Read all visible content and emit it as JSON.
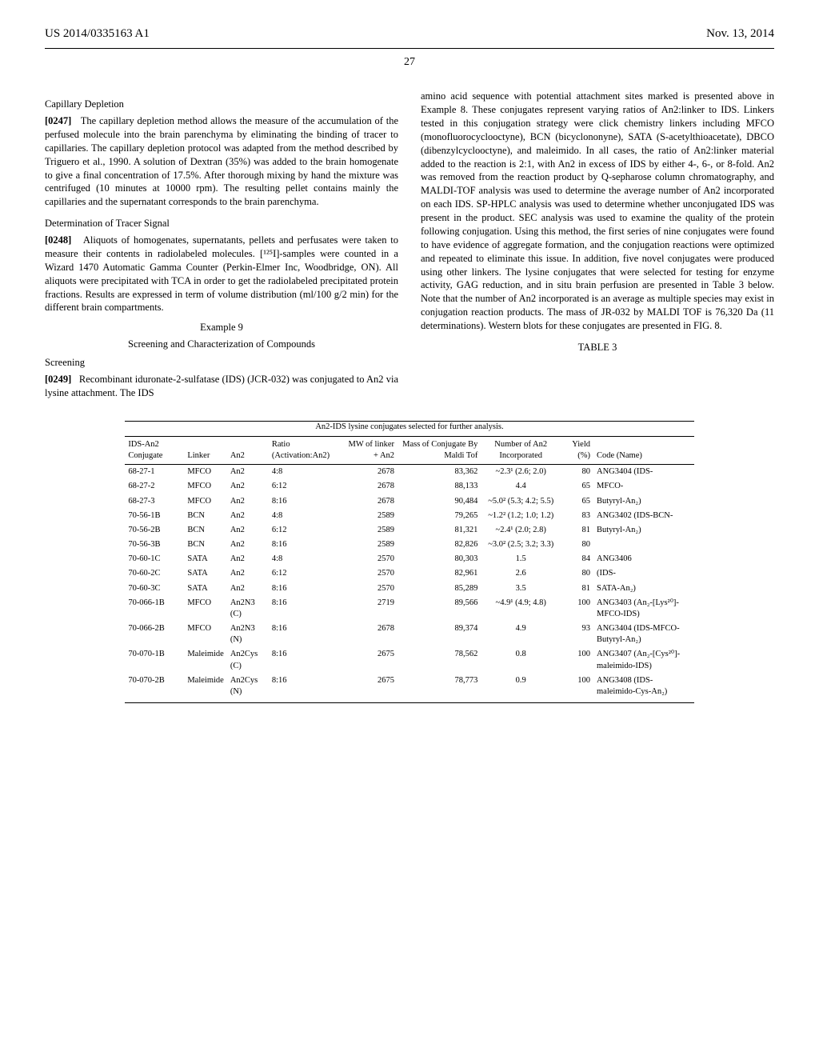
{
  "header": {
    "left": "US 2014/0335163 A1",
    "right": "Nov. 13, 2014",
    "page": "27"
  },
  "left_col": {
    "cap_title": "Capillary Depletion",
    "p0247_num": "[0247]",
    "p0247": "The capillary depletion method allows the measure of the accumulation of the perfused molecule into the brain parenchyma by eliminating the binding of tracer to capillaries. The capillary depletion protocol was adapted from the method described by Triguero et al., 1990. A solution of Dextran (35%) was added to the brain homogenate to give a final concentration of 17.5%. After thorough mixing by hand the mixture was centrifuged (10 minutes at 10000 rpm). The resulting pellet contains mainly the capillaries and the supernatant corresponds to the brain parenchyma.",
    "tracer_title": "Determination of Tracer Signal",
    "p0248_num": "[0248]",
    "p0248": "Aliquots of homogenates, supernatants, pellets and perfusates were taken to measure their contents in radiolabeled molecules. [¹²⁵I]-samples were counted in a Wizard 1470 Automatic Gamma Counter (Perkin-Elmer Inc, Woodbridge, ON). All aliquots were precipitated with TCA in order to get the radiolabeled precipitated protein fractions. Results are expressed in term of volume distribution (ml/100 g/2 min) for the different brain compartments.",
    "ex9": "Example 9",
    "ex9_sub": "Screening and Characterization of Compounds",
    "screening_label": "Screening",
    "p0249_num": "[0249]",
    "p0249": "Recombinant iduronate-2-sulfatase (IDS) (JCR-032) was conjugated to An2 via lysine attachment. The IDS"
  },
  "right_col": {
    "p_right": "amino acid sequence with potential attachment sites marked is presented above in Example 8. These conjugates represent varying ratios of An2:linker to IDS. Linkers tested in this conjugation strategy were click chemistry linkers including MFCO (monofluorocyclooctyne), BCN (bicyclononyne), SATA (S-acetylthioacetate), DBCO (dibenzylcyclooctyne), and maleimido. In all cases, the ratio of An2:linker material added to the reaction is 2:1, with An2 in excess of IDS by either 4-, 6-, or 8-fold. An2 was removed from the reaction product by Q-sepharose column chromatography, and MALDI-TOF analysis was used to determine the average number of An2 incorporated on each IDS. SP-HPLC analysis was used to determine whether unconjugated IDS was present in the product. SEC analysis was used to examine the quality of the protein following conjugation. Using this method, the first series of nine conjugates were found to have evidence of aggregate formation, and the conjugation reactions were optimized and repeated to eliminate this issue. In addition, five novel conjugates were produced using other linkers. The lysine conjugates that were selected for testing for enzyme activity, GAG reduction, and in situ brain perfusion are presented in Table 3 below. Note that the number of An2 incorporated is an average as multiple species may exist in conjugation reaction products. The mass of JR-032 by MALDI TOF is 76,320 Da (11 determinations). Western blots for these conjugates are presented in FIG. 8."
  },
  "table": {
    "label": "TABLE 3",
    "caption": "An2-IDS lysine conjugates selected for further analysis.",
    "columns": {
      "c1": "IDS-An2 Conjugate",
      "c2": "Linker",
      "c3": "An2",
      "c4": "Ratio (Activation:An2)",
      "c5": "MW of linker + An2",
      "c6": "Mass of Conjugate By Maldi Tof",
      "c7": "Number of An2 Incorporated",
      "c8": "Yield (%)",
      "c9": "Code (Name)"
    },
    "rows": [
      {
        "c1": "68-27-1",
        "c2": "MFCO",
        "c3": "An2",
        "c4": "4:8",
        "c5": "2678",
        "c6": "83,362",
        "c7": "~2.3¹ (2.6; 2.0)",
        "c8": "80",
        "c9": "ANG3404 (IDS-"
      },
      {
        "c1": "68-27-2",
        "c2": "MFCO",
        "c3": "An2",
        "c4": "6:12",
        "c5": "2678",
        "c6": "88,133",
        "c7": "4.4",
        "c8": "65",
        "c9": "MFCO-"
      },
      {
        "c1": "68-27-3",
        "c2": "MFCO",
        "c3": "An2",
        "c4": "8:16",
        "c5": "2678",
        "c6": "90,484",
        "c7": "~5.0² (5.3; 4.2; 5.5)",
        "c8": "65",
        "c9": "Butyryl-An₂)"
      },
      {
        "c1": "70-56-1B",
        "c2": "BCN",
        "c3": "An2",
        "c4": "4:8",
        "c5": "2589",
        "c6": "79,265",
        "c7": "~1.2² (1.2; 1.0; 1.2)",
        "c8": "83",
        "c9": "ANG3402 (IDS-BCN-"
      },
      {
        "c1": "70-56-2B",
        "c2": "BCN",
        "c3": "An2",
        "c4": "6:12",
        "c5": "2589",
        "c6": "81,321",
        "c7": "~2.4¹ (2.0; 2.8)",
        "c8": "81",
        "c9": "Butyryl-An₂)"
      },
      {
        "c1": "70-56-3B",
        "c2": "BCN",
        "c3": "An2",
        "c4": "8:16",
        "c5": "2589",
        "c6": "82,826",
        "c7": "~3.0² (2.5; 3.2; 3.3)",
        "c8": "80",
        "c9": ""
      },
      {
        "c1": "70-60-1C",
        "c2": "SATA",
        "c3": "An2",
        "c4": "4:8",
        "c5": "2570",
        "c6": "80,303",
        "c7": "1.5",
        "c8": "84",
        "c9": "ANG3406"
      },
      {
        "c1": "70-60-2C",
        "c2": "SATA",
        "c3": "An2",
        "c4": "6:12",
        "c5": "2570",
        "c6": "82,961",
        "c7": "2.6",
        "c8": "80",
        "c9": "(IDS-"
      },
      {
        "c1": "70-60-3C",
        "c2": "SATA",
        "c3": "An2",
        "c4": "8:16",
        "c5": "2570",
        "c6": "85,289",
        "c7": "3.5",
        "c8": "81",
        "c9": "SATA-An₂)"
      },
      {
        "c1": "70-066-1B",
        "c2": "MFCO",
        "c3": "An2N3 (C)",
        "c4": "8:16",
        "c5": "2719",
        "c6": "89,566",
        "c7": "~4.9¹ (4.9; 4.8)",
        "c8": "100",
        "c9": "ANG3403 (An₂-[Lys²⁰]-MFCO-IDS)"
      },
      {
        "c1": "70-066-2B",
        "c2": "MFCO",
        "c3": "An2N3 (N)",
        "c4": "8:16",
        "c5": "2678",
        "c6": "89,374",
        "c7": "4.9",
        "c8": "93",
        "c9": "ANG3404 (IDS-MFCO-Butyryl-An₂)"
      },
      {
        "c1": "70-070-1B",
        "c2": "Maleimide",
        "c3": "An2Cys (C)",
        "c4": "8:16",
        "c5": "2675",
        "c6": "78,562",
        "c7": "0.8",
        "c8": "100",
        "c9": "ANG3407 (An₂-[Cys²⁰]-maleimido-IDS)"
      },
      {
        "c1": "70-070-2B",
        "c2": "Maleimide",
        "c3": "An2Cys (N)",
        "c4": "8:16",
        "c5": "2675",
        "c6": "78,773",
        "c7": "0.9",
        "c8": "100",
        "c9": "ANG3408 (IDS-maleimido-Cys-An₂)"
      }
    ]
  }
}
